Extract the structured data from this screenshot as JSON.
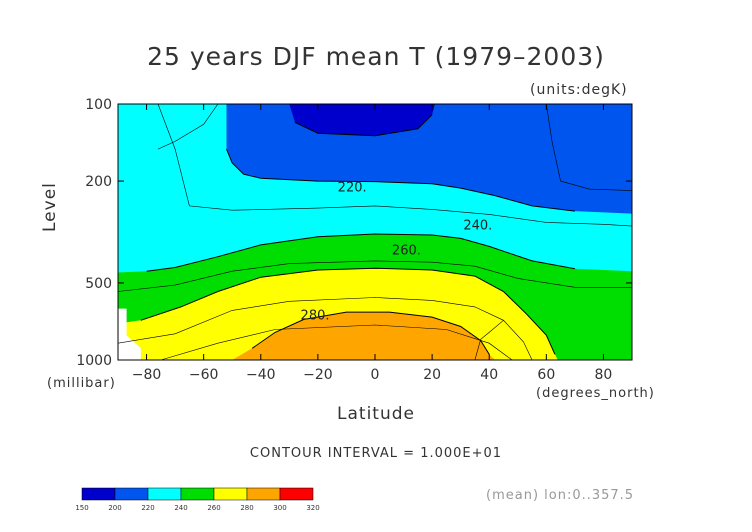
{
  "chart_data": {
    "type": "contour",
    "title": "25 years DJF mean T (1979–2003)",
    "units_label": "(units:degK)",
    "xlabel": "Latitude",
    "x_units_label": "(degrees_north)",
    "ylabel": "Level",
    "y_units_label": "(millibar)",
    "xlim": [
      -90,
      90
    ],
    "ylim": [
      1000,
      100
    ],
    "x_ticks": [
      -80,
      -60,
      -40,
      -20,
      0,
      20,
      40,
      60,
      80
    ],
    "x_tick_labels": [
      "−80",
      "−60",
      "−40",
      "−20",
      "0",
      "20",
      "40",
      "60",
      "80"
    ],
    "y_ticks": [
      100,
      200,
      500,
      1000
    ],
    "y_tick_labels": [
      "100",
      "200",
      "500",
      "1000"
    ],
    "contour_interval_text": "CONTOUR INTERVAL = 1.000E+01",
    "contour_labels": [
      {
        "text": "220.",
        "lat": -8,
        "level": 210
      },
      {
        "text": "240.",
        "lat": 36,
        "level": 295
      },
      {
        "text": "260.",
        "lat": 11,
        "level": 370
      },
      {
        "text": "280.",
        "lat": -21,
        "level": 665
      }
    ],
    "colorbar": {
      "levels": [
        150,
        200,
        220,
        240,
        260,
        280,
        300,
        320
      ],
      "colors": [
        "#0000cc",
        "#0055ee",
        "#00ffff",
        "#00dd00",
        "#ffff00",
        "#ffa500",
        "#ff0000"
      ]
    },
    "field_bands": [
      {
        "range": "200-220 K",
        "color": "#0055ee",
        "boundary": [
          [
            -52,
            100
          ],
          [
            -52,
            150
          ],
          [
            -50,
            170
          ],
          [
            -46,
            188
          ],
          [
            -40,
            195
          ],
          [
            -20,
            200
          ],
          [
            0,
            201
          ],
          [
            20,
            205
          ],
          [
            30,
            213
          ],
          [
            42,
            228
          ],
          [
            55,
            250
          ],
          [
            70,
            262
          ],
          [
            90,
            268
          ],
          [
            90,
            100
          ]
        ]
      },
      {
        "range": "240-260 K",
        "color": "#00dd00",
        "boundary": [
          [
            -90,
            1000
          ],
          [
            -90,
            455
          ],
          [
            -80,
            450
          ],
          [
            -70,
            435
          ],
          [
            -55,
            395
          ],
          [
            -40,
            355
          ],
          [
            -20,
            330
          ],
          [
            0,
            322
          ],
          [
            20,
            325
          ],
          [
            30,
            335
          ],
          [
            40,
            360
          ],
          [
            55,
            410
          ],
          [
            70,
            440
          ],
          [
            90,
            450
          ],
          [
            90,
            1000
          ]
        ]
      },
      {
        "range": "260-280 K",
        "color": "#ffff00",
        "boundary": [
          [
            -90,
            1000
          ],
          [
            -90,
            720
          ],
          [
            -82,
            700
          ],
          [
            -68,
            620
          ],
          [
            -55,
            540
          ],
          [
            -40,
            475
          ],
          [
            -20,
            445
          ],
          [
            0,
            438
          ],
          [
            20,
            445
          ],
          [
            35,
            470
          ],
          [
            45,
            540
          ],
          [
            53,
            660
          ],
          [
            60,
            800
          ],
          [
            63,
            950
          ],
          [
            64,
            1000
          ]
        ]
      },
      {
        "range": "280-300 K",
        "color": "#ffa500",
        "boundary": [
          [
            -50,
            1000
          ],
          [
            -43,
            900
          ],
          [
            -35,
            780
          ],
          [
            -25,
            695
          ],
          [
            -10,
            650
          ],
          [
            5,
            650
          ],
          [
            20,
            680
          ],
          [
            30,
            740
          ],
          [
            37,
            840
          ],
          [
            40,
            950
          ],
          [
            42,
            1000
          ]
        ]
      },
      {
        "range": "150-200 K",
        "color": "#0000cc",
        "boundary": [
          [
            -30,
            100
          ],
          [
            -28,
            118
          ],
          [
            -20,
            130
          ],
          [
            0,
            133
          ],
          [
            15,
            125
          ],
          [
            20,
            110
          ],
          [
            21,
            100
          ]
        ]
      },
      {
        "range": "missing",
        "color": "#ffffff",
        "boundary": [
          [
            -90,
            1000
          ],
          [
            -90,
            630
          ],
          [
            -87,
            630
          ],
          [
            -87,
            800
          ],
          [
            -82,
            900
          ],
          [
            -82,
            1000
          ]
        ]
      }
    ],
    "contour_lines": [
      [
        [
          -76,
          100
        ],
        [
          -70,
          150
        ],
        [
          -65,
          250
        ],
        [
          -50,
          260
        ],
        [
          -20,
          255
        ],
        [
          0,
          250
        ],
        [
          20,
          258
        ],
        [
          40,
          270
        ],
        [
          60,
          290
        ],
        [
          80,
          295
        ],
        [
          90,
          300
        ]
      ],
      [
        [
          -90,
          540
        ],
        [
          -70,
          510
        ],
        [
          -50,
          450
        ],
        [
          -30,
          420
        ],
        [
          0,
          410
        ],
        [
          20,
          415
        ],
        [
          35,
          430
        ],
        [
          50,
          480
        ],
        [
          70,
          520
        ],
        [
          90,
          520
        ]
      ],
      [
        [
          -90,
          860
        ],
        [
          -70,
          790
        ],
        [
          -50,
          640
        ],
        [
          -30,
          590
        ],
        [
          0,
          570
        ],
        [
          20,
          585
        ],
        [
          35,
          620
        ],
        [
          45,
          700
        ],
        [
          52,
          850
        ],
        [
          55,
          1000
        ]
      ],
      [
        [
          -75,
          1000
        ],
        [
          -55,
          860
        ],
        [
          -35,
          760
        ],
        [
          0,
          730
        ],
        [
          25,
          760
        ],
        [
          40,
          860
        ],
        [
          48,
          1000
        ]
      ],
      [
        [
          60,
          100
        ],
        [
          62,
          140
        ],
        [
          65,
          200
        ],
        [
          75,
          215
        ],
        [
          90,
          218
        ]
      ],
      [
        [
          -76,
          150
        ],
        [
          -70,
          140
        ],
        [
          -60,
          120
        ],
        [
          -55,
          100
        ]
      ],
      [
        [
          35,
          1000
        ],
        [
          37,
          830
        ],
        [
          40,
          780
        ],
        [
          45,
          700
        ]
      ]
    ]
  },
  "footer": {
    "mean_info": "(mean) lon:0..357.5"
  }
}
